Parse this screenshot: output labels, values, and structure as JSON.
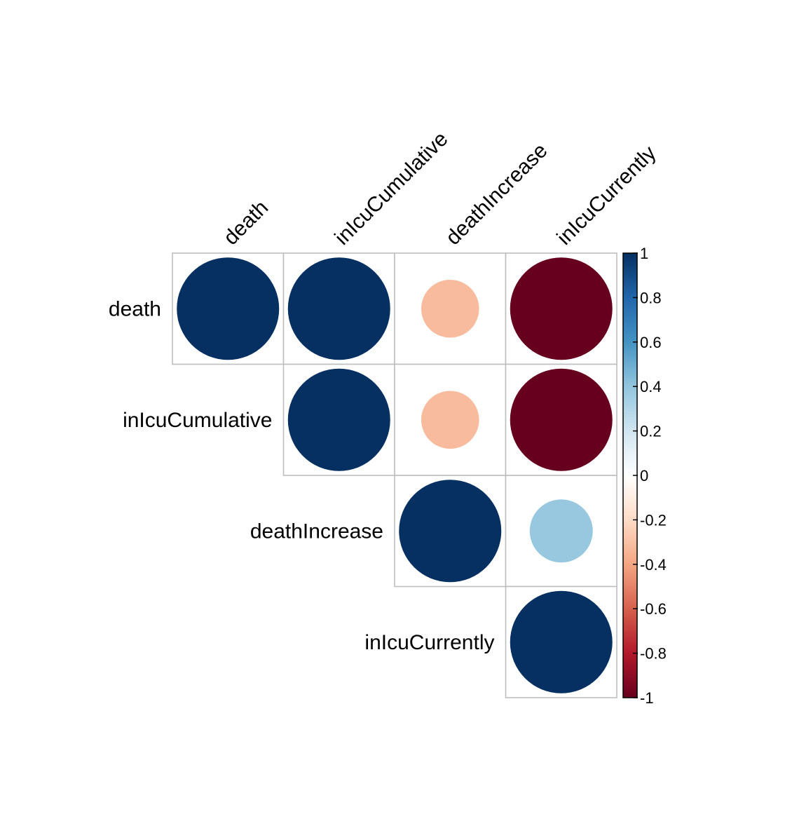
{
  "chart_data": {
    "type": "heatmap",
    "subtype": "correlation-circle-upper",
    "variables": [
      "death",
      "inIcuCumulative",
      "deathIncrease",
      "inIcuCurrently"
    ],
    "matrix": [
      [
        1.0,
        1.0,
        -0.32,
        -1.0
      ],
      [
        1.0,
        1.0,
        -0.32,
        -1.0
      ],
      [
        -0.32,
        -0.32,
        1.0,
        0.38
      ],
      [
        -1.0,
        -1.0,
        0.38,
        1.0
      ]
    ],
    "colorbar": {
      "range": [
        -1,
        1
      ],
      "ticks": [
        "1",
        "0.8",
        "0.6",
        "0.4",
        "0.2",
        "0",
        "-0.2",
        "-0.4",
        "-0.6",
        "-0.8",
        "-1"
      ],
      "colors": [
        "#67001F",
        "#B2182B",
        "#D6604D",
        "#F4A582",
        "#FDDBC7",
        "#FFFFFF",
        "#D1E5F0",
        "#92C5DE",
        "#4393C3",
        "#2166AC",
        "#053061"
      ]
    },
    "cell_border_color": "#BEBEBE"
  }
}
